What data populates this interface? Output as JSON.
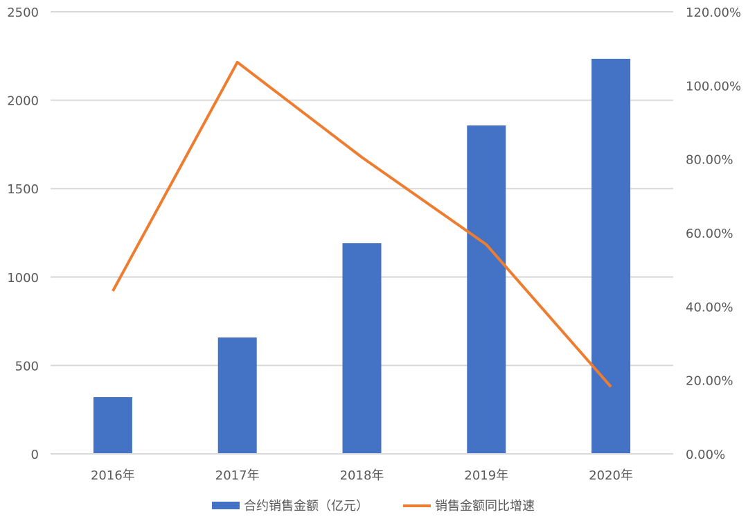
{
  "chart_data": {
    "type": "bar+line",
    "categories": [
      "2016年",
      "2017年",
      "2018年",
      "2019年",
      "2020年"
    ],
    "series": [
      {
        "name": "合约销售金额（亿元）",
        "type": "bar",
        "axis": "left",
        "color": "#4472C4",
        "values": [
          321,
          658,
          1191,
          1857,
          2234
        ]
      },
      {
        "name": "销售金额同比增速",
        "type": "line",
        "axis": "right",
        "color": "#ED7D31",
        "values": [
          44.2,
          106.3,
          80.5,
          56.8,
          18.2
        ]
      }
    ],
    "left_axis": {
      "ylim": [
        0,
        2500
      ],
      "ticks": [
        "0",
        "500",
        "1000",
        "1500",
        "2000",
        "2500"
      ]
    },
    "right_axis": {
      "ylim": [
        0,
        120
      ],
      "ticks": [
        "0.00%",
        "20.00%",
        "40.00%",
        "60.00%",
        "80.00%",
        "100.00%",
        "120.00%"
      ]
    },
    "grid": true,
    "legend": "bottom"
  }
}
